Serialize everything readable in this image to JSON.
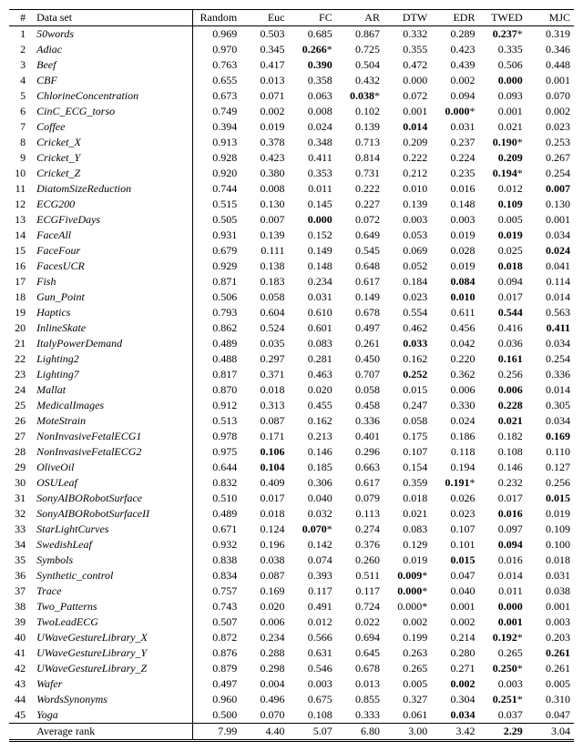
{
  "columns": [
    "#",
    "Data set",
    "Random",
    "Euc",
    "FC",
    "AR",
    "DTW",
    "EDR",
    "TWED",
    "MJC"
  ],
  "avg_label": "Average rank",
  "avg_values": [
    "7.99",
    "4.40",
    "5.07",
    "6.80",
    "3.00",
    "3.42",
    "2.29",
    "3.04"
  ],
  "rows": [
    {
      "n": 1,
      "name": "50words",
      "v": [
        "0.969",
        "0.503",
        "0.685",
        "0.867",
        "0.332",
        "0.289",
        "0.237",
        "0.319"
      ],
      "bold": 6,
      "star": [
        6
      ]
    },
    {
      "n": 2,
      "name": "Adiac",
      "v": [
        "0.970",
        "0.345",
        "0.266",
        "0.725",
        "0.355",
        "0.423",
        "0.335",
        "0.346"
      ],
      "bold": 2,
      "star": [
        2
      ]
    },
    {
      "n": 3,
      "name": "Beef",
      "v": [
        "0.763",
        "0.417",
        "0.390",
        "0.504",
        "0.472",
        "0.439",
        "0.506",
        "0.448"
      ],
      "bold": 2
    },
    {
      "n": 4,
      "name": "CBF",
      "v": [
        "0.655",
        "0.013",
        "0.358",
        "0.432",
        "0.000",
        "0.002",
        "0.000",
        "0.001"
      ],
      "bold": 6
    },
    {
      "n": 5,
      "name": "ChlorineConcentration",
      "v": [
        "0.673",
        "0.071",
        "0.063",
        "0.038",
        "0.072",
        "0.094",
        "0.093",
        "0.070"
      ],
      "bold": 3,
      "star": [
        3
      ]
    },
    {
      "n": 6,
      "name": "CinC_ECG_torso",
      "v": [
        "0.749",
        "0.002",
        "0.008",
        "0.102",
        "0.001",
        "0.000",
        "0.001",
        "0.002"
      ],
      "bold": 5,
      "star": [
        5
      ]
    },
    {
      "n": 7,
      "name": "Coffee",
      "v": [
        "0.394",
        "0.019",
        "0.024",
        "0.139",
        "0.014",
        "0.031",
        "0.021",
        "0.023"
      ],
      "bold": 4
    },
    {
      "n": 8,
      "name": "Cricket_X",
      "v": [
        "0.913",
        "0.378",
        "0.348",
        "0.713",
        "0.209",
        "0.237",
        "0.190",
        "0.253"
      ],
      "bold": 6,
      "star": [
        6
      ]
    },
    {
      "n": 9,
      "name": "Cricket_Y",
      "v": [
        "0.928",
        "0.423",
        "0.411",
        "0.814",
        "0.222",
        "0.224",
        "0.209",
        "0.267"
      ],
      "bold": 6
    },
    {
      "n": 10,
      "name": "Cricket_Z",
      "v": [
        "0.920",
        "0.380",
        "0.353",
        "0.731",
        "0.212",
        "0.235",
        "0.194",
        "0.254"
      ],
      "bold": 6,
      "star": [
        6
      ]
    },
    {
      "n": 11,
      "name": "DiatomSizeReduction",
      "v": [
        "0.744",
        "0.008",
        "0.011",
        "0.222",
        "0.010",
        "0.016",
        "0.012",
        "0.007"
      ],
      "bold": 7
    },
    {
      "n": 12,
      "name": "ECG200",
      "v": [
        "0.515",
        "0.130",
        "0.145",
        "0.227",
        "0.139",
        "0.148",
        "0.109",
        "0.130"
      ],
      "bold": 6
    },
    {
      "n": 13,
      "name": "ECGFiveDays",
      "v": [
        "0.505",
        "0.007",
        "0.000",
        "0.072",
        "0.003",
        "0.003",
        "0.005",
        "0.001"
      ],
      "bold": 2
    },
    {
      "n": 14,
      "name": "FaceAll",
      "v": [
        "0.931",
        "0.139",
        "0.152",
        "0.649",
        "0.053",
        "0.019",
        "0.019",
        "0.034"
      ],
      "bold": 6
    },
    {
      "n": 15,
      "name": "FaceFour",
      "v": [
        "0.679",
        "0.111",
        "0.149",
        "0.545",
        "0.069",
        "0.028",
        "0.025",
        "0.024"
      ],
      "bold": 7
    },
    {
      "n": 16,
      "name": "FacesUCR",
      "v": [
        "0.929",
        "0.138",
        "0.148",
        "0.648",
        "0.052",
        "0.019",
        "0.018",
        "0.041"
      ],
      "bold": 6
    },
    {
      "n": 17,
      "name": "Fish",
      "v": [
        "0.871",
        "0.183",
        "0.234",
        "0.617",
        "0.184",
        "0.084",
        "0.094",
        "0.114"
      ],
      "bold": 5
    },
    {
      "n": 18,
      "name": "Gun_Point",
      "v": [
        "0.506",
        "0.058",
        "0.031",
        "0.149",
        "0.023",
        "0.010",
        "0.017",
        "0.014"
      ],
      "bold": 5
    },
    {
      "n": 19,
      "name": "Haptics",
      "v": [
        "0.793",
        "0.604",
        "0.610",
        "0.678",
        "0.554",
        "0.611",
        "0.544",
        "0.563"
      ],
      "bold": 6
    },
    {
      "n": 20,
      "name": "InlineSkate",
      "v": [
        "0.862",
        "0.524",
        "0.601",
        "0.497",
        "0.462",
        "0.456",
        "0.416",
        "0.411"
      ],
      "bold": 7
    },
    {
      "n": 21,
      "name": "ItalyPowerDemand",
      "v": [
        "0.489",
        "0.035",
        "0.083",
        "0.261",
        "0.033",
        "0.042",
        "0.036",
        "0.034"
      ],
      "bold": 4
    },
    {
      "n": 22,
      "name": "Lighting2",
      "v": [
        "0.488",
        "0.297",
        "0.281",
        "0.450",
        "0.162",
        "0.220",
        "0.161",
        "0.254"
      ],
      "bold": 6
    },
    {
      "n": 23,
      "name": "Lighting7",
      "v": [
        "0.817",
        "0.371",
        "0.463",
        "0.707",
        "0.252",
        "0.362",
        "0.256",
        "0.336"
      ],
      "bold": 4
    },
    {
      "n": 24,
      "name": "Mallat",
      "v": [
        "0.870",
        "0.018",
        "0.020",
        "0.058",
        "0.015",
        "0.006",
        "0.006",
        "0.014"
      ],
      "bold": 6
    },
    {
      "n": 25,
      "name": "MedicalImages",
      "v": [
        "0.912",
        "0.313",
        "0.455",
        "0.458",
        "0.247",
        "0.330",
        "0.228",
        "0.305"
      ],
      "bold": 6
    },
    {
      "n": 26,
      "name": "MoteStrain",
      "v": [
        "0.513",
        "0.087",
        "0.162",
        "0.336",
        "0.058",
        "0.024",
        "0.021",
        "0.034"
      ],
      "bold": 6
    },
    {
      "n": 27,
      "name": "NonInvasiveFetalECG1",
      "v": [
        "0.978",
        "0.171",
        "0.213",
        "0.401",
        "0.175",
        "0.186",
        "0.182",
        "0.169"
      ],
      "bold": 7
    },
    {
      "n": 28,
      "name": "NonInvasiveFetalECG2",
      "v": [
        "0.975",
        "0.106",
        "0.146",
        "0.296",
        "0.107",
        "0.118",
        "0.108",
        "0.110"
      ],
      "bold": 1
    },
    {
      "n": 29,
      "name": "OliveOil",
      "v": [
        "0.644",
        "0.104",
        "0.185",
        "0.663",
        "0.154",
        "0.194",
        "0.146",
        "0.127"
      ],
      "bold": 1
    },
    {
      "n": 30,
      "name": "OSULeaf",
      "v": [
        "0.832",
        "0.409",
        "0.306",
        "0.617",
        "0.359",
        "0.191",
        "0.232",
        "0.256"
      ],
      "bold": 5,
      "star": [
        5
      ]
    },
    {
      "n": 31,
      "name": "SonyAIBORobotSurface",
      "v": [
        "0.510",
        "0.017",
        "0.040",
        "0.079",
        "0.018",
        "0.026",
        "0.017",
        "0.015"
      ],
      "bold": 7
    },
    {
      "n": 32,
      "name": "SonyAIBORobotSurfaceII",
      "v": [
        "0.489",
        "0.018",
        "0.032",
        "0.113",
        "0.021",
        "0.023",
        "0.016",
        "0.019"
      ],
      "bold": 6
    },
    {
      "n": 33,
      "name": "StarLightCurves",
      "v": [
        "0.671",
        "0.124",
        "0.070",
        "0.274",
        "0.083",
        "0.107",
        "0.097",
        "0.109"
      ],
      "bold": 2,
      "star": [
        2
      ]
    },
    {
      "n": 34,
      "name": "SwedishLeaf",
      "v": [
        "0.932",
        "0.196",
        "0.142",
        "0.376",
        "0.129",
        "0.101",
        "0.094",
        "0.100"
      ],
      "bold": 6
    },
    {
      "n": 35,
      "name": "Symbols",
      "v": [
        "0.838",
        "0.038",
        "0.074",
        "0.260",
        "0.019",
        "0.015",
        "0.016",
        "0.018"
      ],
      "bold": 5
    },
    {
      "n": 36,
      "name": "Synthetic_control",
      "v": [
        "0.834",
        "0.087",
        "0.393",
        "0.511",
        "0.009",
        "0.047",
        "0.014",
        "0.031"
      ],
      "bold": 4,
      "star": [
        4
      ]
    },
    {
      "n": 37,
      "name": "Trace",
      "v": [
        "0.757",
        "0.169",
        "0.117",
        "0.117",
        "0.000",
        "0.040",
        "0.011",
        "0.038"
      ],
      "bold": 4,
      "star": [
        4
      ]
    },
    {
      "n": 38,
      "name": "Two_Patterns",
      "v": [
        "0.743",
        "0.020",
        "0.491",
        "0.724",
        "0.000",
        "0.001",
        "0.000",
        "0.001"
      ],
      "bold": 6,
      "star": [
        4
      ]
    },
    {
      "n": 39,
      "name": "TwoLeadECG",
      "v": [
        "0.507",
        "0.006",
        "0.012",
        "0.022",
        "0.002",
        "0.002",
        "0.001",
        "0.003"
      ],
      "bold": 6
    },
    {
      "n": 40,
      "name": "UWaveGestureLibrary_X",
      "v": [
        "0.872",
        "0.234",
        "0.566",
        "0.694",
        "0.199",
        "0.214",
        "0.192",
        "0.203"
      ],
      "bold": 6,
      "star": [
        6
      ]
    },
    {
      "n": 41,
      "name": "UWaveGestureLibrary_Y",
      "v": [
        "0.876",
        "0.288",
        "0.631",
        "0.645",
        "0.263",
        "0.280",
        "0.265",
        "0.261"
      ],
      "bold": 7
    },
    {
      "n": 42,
      "name": "UWaveGestureLibrary_Z",
      "v": [
        "0.879",
        "0.298",
        "0.546",
        "0.678",
        "0.265",
        "0.271",
        "0.250",
        "0.261"
      ],
      "bold": 6,
      "star": [
        6
      ]
    },
    {
      "n": 43,
      "name": "Wafer",
      "v": [
        "0.497",
        "0.004",
        "0.003",
        "0.013",
        "0.005",
        "0.002",
        "0.003",
        "0.005"
      ],
      "bold": 5
    },
    {
      "n": 44,
      "name": "WordsSynonyms",
      "v": [
        "0.960",
        "0.496",
        "0.675",
        "0.855",
        "0.327",
        "0.304",
        "0.251",
        "0.310"
      ],
      "bold": 6,
      "star": [
        6
      ]
    },
    {
      "n": 45,
      "name": "Yoga",
      "v": [
        "0.500",
        "0.070",
        "0.108",
        "0.333",
        "0.061",
        "0.034",
        "0.037",
        "0.047"
      ],
      "bold": 5
    }
  ]
}
